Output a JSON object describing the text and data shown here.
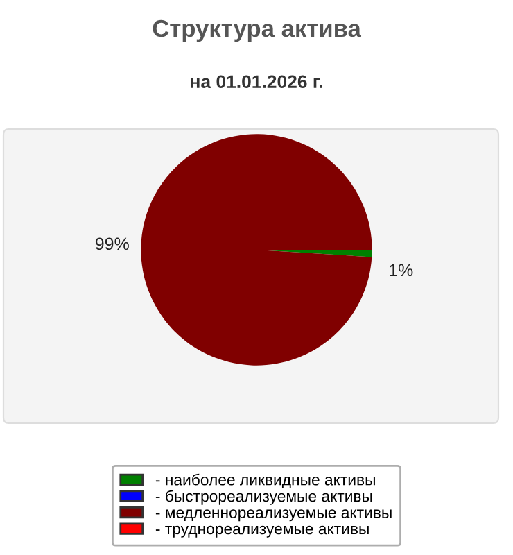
{
  "chart_data": {
    "type": "pie",
    "title": "Структура актива",
    "subtitle": "на 01.01.2026 г.",
    "categories": [
      "- наиболее ликвидные активы",
      "- быстрореализуемые активы",
      "- медленнореализуемые активы",
      "- труднореализуемые активы"
    ],
    "values": [
      1,
      0,
      99,
      0
    ],
    "colors": [
      "#008000",
      "#0000ff",
      "#800000",
      "#ff0000"
    ],
    "value_labels": [
      "1%",
      null,
      "99%",
      null
    ],
    "legend": "bottom"
  }
}
